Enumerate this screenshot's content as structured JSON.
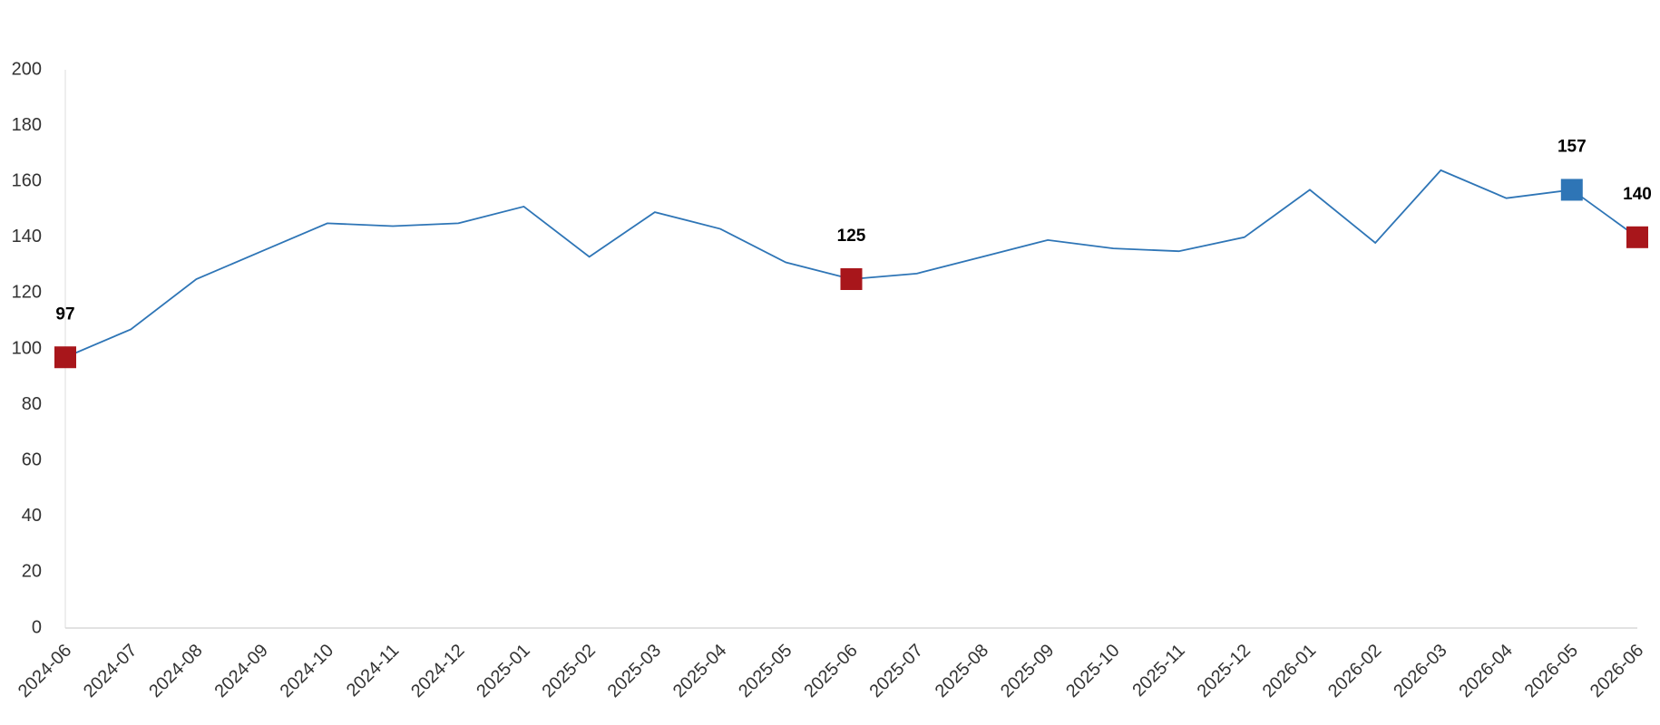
{
  "chart_data": {
    "type": "line",
    "categories": [
      "2024-06",
      "2024-07",
      "2024-08",
      "2024-09",
      "2024-10",
      "2024-11",
      "2024-12",
      "2025-01",
      "2025-02",
      "2025-03",
      "2025-04",
      "2025-05",
      "2025-06",
      "2025-07",
      "2025-08",
      "2025-09",
      "2025-10",
      "2025-11",
      "2025-12",
      "2026-01",
      "2026-02",
      "2026-03",
      "2026-04",
      "2026-05",
      "2026-06"
    ],
    "series": [
      {
        "color": "#2e75b6",
        "values": [
          97,
          107,
          125,
          135,
          145,
          144,
          145,
          151,
          133,
          149,
          143,
          131,
          125,
          127,
          133,
          139,
          136,
          135,
          140,
          157,
          138,
          164,
          154,
          157,
          140
        ],
        "marker_colors": [
          "#a8161b",
          null,
          null,
          null,
          null,
          null,
          null,
          null,
          null,
          null,
          null,
          null,
          "#a8161b",
          null,
          null,
          null,
          null,
          null,
          null,
          null,
          null,
          null,
          null,
          "#2e75b6",
          "#a8161b"
        ]
      }
    ],
    "ylim": [
      0,
      200
    ],
    "yticks": [
      0,
      20,
      40,
      60,
      80,
      100,
      120,
      140,
      160,
      180,
      200
    ],
    "grid": false
  }
}
